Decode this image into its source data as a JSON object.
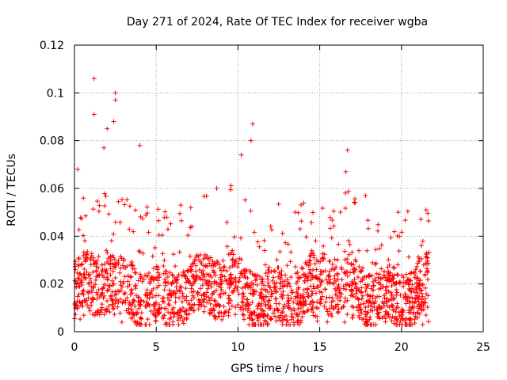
{
  "chart_data": {
    "type": "scatter",
    "title": "Day 271 of 2024, Rate Of TEC Index for receiver wgba",
    "xlabel": "GPS time / hours",
    "ylabel": "ROTI / TECUs",
    "xlim": [
      0,
      25
    ],
    "ylim": [
      0,
      0.12
    ],
    "x_ticks": [
      0,
      5,
      10,
      15,
      20,
      25
    ],
    "x_tick_labels": [
      "0",
      "5",
      "10",
      "15",
      "20",
      "25"
    ],
    "y_ticks": [
      0,
      0.02,
      0.04,
      0.06,
      0.08,
      0.1,
      0.12
    ],
    "y_tick_labels": [
      "0",
      "0.02",
      "0.04",
      "0.06",
      "0.08",
      "0.1",
      "0.12"
    ],
    "grid": true,
    "marker": "+",
    "series": [
      {
        "name": "ROTI",
        "color": "#ff0000",
        "x_range": [
          0,
          21.7
        ],
        "typical_range": [
          0.005,
          0.035
        ],
        "notable_points": [
          {
            "x": 1.2,
            "y": 0.106
          },
          {
            "x": 1.2,
            "y": 0.091
          },
          {
            "x": 2.5,
            "y": 0.1
          },
          {
            "x": 2.5,
            "y": 0.097
          },
          {
            "x": 2.4,
            "y": 0.088
          },
          {
            "x": 2.0,
            "y": 0.085
          },
          {
            "x": 1.8,
            "y": 0.077
          },
          {
            "x": 4.0,
            "y": 0.078
          },
          {
            "x": 0.2,
            "y": 0.068
          },
          {
            "x": 10.9,
            "y": 0.087
          },
          {
            "x": 10.8,
            "y": 0.08
          },
          {
            "x": 10.2,
            "y": 0.074
          },
          {
            "x": 16.7,
            "y": 0.076
          },
          {
            "x": 16.6,
            "y": 0.067
          },
          {
            "x": 17.8,
            "y": 0.057
          },
          {
            "x": 21.5,
            "y": 0.051
          },
          {
            "x": 19.8,
            "y": 0.05
          },
          {
            "x": 8.7,
            "y": 0.06
          },
          {
            "x": 6.5,
            "y": 0.053
          },
          {
            "x": 13.5,
            "y": 0.05
          },
          {
            "x": 2.9,
            "y": 0.004
          },
          {
            "x": 21.3,
            "y": 0.003
          }
        ]
      }
    ]
  }
}
